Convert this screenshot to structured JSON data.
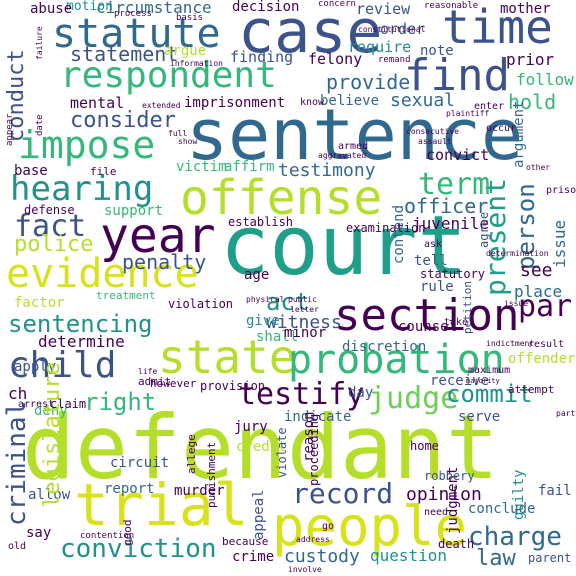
{
  "palette": {
    "dark_purple": "#440154",
    "indigo": "#3b528b",
    "blue": "#31688e",
    "teal": "#21918c",
    "green_teal": "#1f9e89",
    "green": "#35b779",
    "light_green": "#6ece58",
    "yellow_green": "#b5de2b",
    "yellow": "#d8e219"
  },
  "words": [
    {
      "text": "defendant",
      "color": "#b5de2b"
    },
    {
      "text": "court",
      "color": "#1f9e89"
    },
    {
      "text": "sentence",
      "color": "#31688e"
    },
    {
      "text": "case",
      "color": "#3b528b"
    },
    {
      "text": "trial",
      "color": "#d8e219"
    },
    {
      "text": "people",
      "color": "#d8e219"
    },
    {
      "text": "offense",
      "color": "#b5de2b"
    },
    {
      "text": "time",
      "color": "#3b528b"
    },
    {
      "text": "year",
      "color": "#440154"
    },
    {
      "text": "statute",
      "color": "#31688e"
    },
    {
      "text": "respondent",
      "color": "#35b779"
    },
    {
      "text": "evidence",
      "color": "#d8e219"
    },
    {
      "text": "state",
      "color": "#b5de2b"
    },
    {
      "text": "section",
      "color": "#440154"
    },
    {
      "text": "probation",
      "color": "#35b779"
    },
    {
      "text": "find",
      "color": "#3b528b"
    },
    {
      "text": "impose",
      "color": "#35b779"
    },
    {
      "text": "hearing",
      "color": "#21918c"
    },
    {
      "text": "child",
      "color": "#3b528b"
    },
    {
      "text": "sentencing",
      "color": "#21918c"
    },
    {
      "text": "testify",
      "color": "#440154"
    },
    {
      "text": "conviction",
      "color": "#21918c"
    },
    {
      "text": "record",
      "color": "#3b528b"
    },
    {
      "text": "judge",
      "color": "#6ece58"
    },
    {
      "text": "criminal",
      "color": "#3b528b"
    },
    {
      "text": "charge",
      "color": "#31688e"
    },
    {
      "text": "present",
      "color": "#1f9e89"
    },
    {
      "text": "person",
      "color": "#31688e"
    },
    {
      "text": "fact",
      "color": "#3b528b"
    },
    {
      "text": "police",
      "color": "#b5de2b"
    },
    {
      "text": "consider",
      "color": "#3b528b"
    },
    {
      "text": "term",
      "color": "#35b779"
    },
    {
      "text": "testimony",
      "color": "#31688e"
    },
    {
      "text": "provide",
      "color": "#31688e"
    },
    {
      "text": "conduct",
      "color": "#3b528b"
    },
    {
      "text": "statement",
      "color": "#3b528b"
    },
    {
      "text": "circumstance",
      "color": "#31688e"
    },
    {
      "text": "motion",
      "color": "#21918c"
    },
    {
      "text": "decision",
      "color": "#440154"
    },
    {
      "text": "review",
      "color": "#3b528b"
    },
    {
      "text": "mother",
      "color": "#440154"
    },
    {
      "text": "issue",
      "color": "#31688e"
    },
    {
      "text": "right",
      "color": "#35b779"
    },
    {
      "text": "commit",
      "color": "#21918c"
    },
    {
      "text": "custody",
      "color": "#31688e"
    },
    {
      "text": "question",
      "color": "#21918c"
    },
    {
      "text": "law",
      "color": "#31688e"
    },
    {
      "text": "opinion",
      "color": "#440154"
    },
    {
      "text": "par",
      "color": "#440154"
    },
    {
      "text": "act",
      "color": "#21918c"
    },
    {
      "text": "penalty",
      "color": "#3b528b"
    },
    {
      "text": "witness",
      "color": "#3b528b"
    },
    {
      "text": "determine",
      "color": "#440154"
    },
    {
      "text": "hold",
      "color": "#35b779"
    },
    {
      "text": "sexual",
      "color": "#31688e"
    },
    {
      "text": "officer",
      "color": "#31688e"
    },
    {
      "text": "juvenile",
      "color": "#440154"
    },
    {
      "text": "imprisonment",
      "color": "#440154"
    },
    {
      "text": "argue",
      "color": "#b5de2b"
    },
    {
      "text": "finding",
      "color": "#3b528b"
    },
    {
      "text": "felony",
      "color": "#440154"
    },
    {
      "text": "require",
      "color": "#21918c"
    },
    {
      "text": "order",
      "color": "#3b528b"
    },
    {
      "text": "prior",
      "color": "#440154"
    },
    {
      "text": "follow",
      "color": "#35b779"
    },
    {
      "text": "note",
      "color": "#3b528b"
    },
    {
      "text": "mental",
      "color": "#440154"
    },
    {
      "text": "believe",
      "color": "#31688e"
    },
    {
      "text": "victim",
      "color": "#35b779"
    },
    {
      "text": "affirm",
      "color": "#35b779"
    },
    {
      "text": "convict",
      "color": "#440154"
    },
    {
      "text": "argument",
      "color": "#31688e"
    },
    {
      "text": "base",
      "color": "#440154"
    },
    {
      "text": "support",
      "color": "#35b779"
    },
    {
      "text": "factor",
      "color": "#b5de2b"
    },
    {
      "text": "age",
      "color": "#440154"
    },
    {
      "text": "counsel",
      "color": "#440154"
    },
    {
      "text": "rule",
      "color": "#3b528b"
    },
    {
      "text": "tell",
      "color": "#3b528b"
    },
    {
      "text": "see",
      "color": "#440154"
    },
    {
      "text": "place",
      "color": "#31688e"
    },
    {
      "text": "give",
      "color": "#21918c"
    },
    {
      "text": "shall",
      "color": "#35b779"
    },
    {
      "text": "minor",
      "color": "#440154"
    },
    {
      "text": "discretion",
      "color": "#31688e"
    },
    {
      "text": "offender",
      "color": "#b5de2b"
    },
    {
      "text": "apply",
      "color": "#3b528b"
    },
    {
      "text": "jury",
      "color": "#440154"
    },
    {
      "text": "indicate",
      "color": "#31688e"
    },
    {
      "text": "serve",
      "color": "#3b528b"
    },
    {
      "text": "receive",
      "color": "#3b528b"
    },
    {
      "text": "deny",
      "color": "#35b779"
    },
    {
      "text": "ch",
      "color": "#440154"
    },
    {
      "text": "circuit",
      "color": "#3b528b"
    },
    {
      "text": "report",
      "color": "#31688e"
    },
    {
      "text": "murder",
      "color": "#440154"
    },
    {
      "text": "allow",
      "color": "#3b528b"
    },
    {
      "text": "say",
      "color": "#440154"
    },
    {
      "text": "crime",
      "color": "#440154"
    },
    {
      "text": "appeal",
      "color": "#3b528b"
    },
    {
      "text": "guilty",
      "color": "#21918c"
    },
    {
      "text": "conclude",
      "color": "#31688e"
    },
    {
      "text": "fail",
      "color": "#3b528b"
    },
    {
      "text": "judgment",
      "color": "#440154"
    },
    {
      "text": "legislature",
      "color": "#b5de2b"
    },
    {
      "text": "contend",
      "color": "#31688e"
    },
    {
      "text": "establish",
      "color": "#440154"
    },
    {
      "text": "examination",
      "color": "#440154"
    },
    {
      "text": "treatment",
      "color": "#35b779"
    },
    {
      "text": "violation",
      "color": "#440154"
    },
    {
      "text": "credit",
      "color": "#b5de2b"
    },
    {
      "text": "day",
      "color": "#3b528b"
    },
    {
      "text": "reason",
      "color": "#440154"
    },
    {
      "text": "home",
      "color": "#440154"
    },
    {
      "text": "abuse",
      "color": "#440154"
    },
    {
      "text": "defense",
      "color": "#440154"
    },
    {
      "text": "file",
      "color": "#440154"
    },
    {
      "text": "death",
      "color": "#440154"
    },
    {
      "text": "robbery",
      "color": "#3b528b"
    },
    {
      "text": "statutory",
      "color": "#440154"
    },
    {
      "text": "agree",
      "color": "#3b528b"
    },
    {
      "text": "arrest",
      "color": "#440154"
    },
    {
      "text": "attempt",
      "color": "#440154"
    },
    {
      "text": "provision",
      "color": "#440154"
    },
    {
      "text": "however",
      "color": "#440154"
    },
    {
      "text": "proceeding",
      "color": "#440154"
    },
    {
      "text": "because",
      "color": "#440154"
    },
    {
      "text": "maximum",
      "color": "#440154"
    },
    {
      "text": "violate",
      "color": "#3b528b"
    },
    {
      "text": "admit",
      "color": "#440154"
    },
    {
      "text": "claim",
      "color": "#440154"
    },
    {
      "text": "punishment",
      "color": "#440154"
    },
    {
      "text": "allege",
      "color": "#440154"
    },
    {
      "text": "petition",
      "color": "#3b528b"
    },
    {
      "text": "good",
      "color": "#440154"
    },
    {
      "text": "need",
      "color": "#440154"
    },
    {
      "text": "prison",
      "color": "#440154"
    },
    {
      "text": "parent",
      "color": "#3b528b"
    },
    {
      "text": "enter",
      "color": "#440154"
    },
    {
      "text": "occur",
      "color": "#440154"
    },
    {
      "text": "armed",
      "color": "#440154"
    },
    {
      "text": "know",
      "color": "#440154"
    },
    {
      "text": "ask",
      "color": "#440154"
    },
    {
      "text": "take",
      "color": "#440154"
    },
    {
      "text": "result",
      "color": "#440154"
    },
    {
      "text": "remand",
      "color": "#440154"
    },
    {
      "text": "reasonable",
      "color": "#440154"
    },
    {
      "text": "concern",
      "color": "#440154"
    },
    {
      "text": "basis",
      "color": "#440154"
    },
    {
      "text": "process",
      "color": "#440154"
    },
    {
      "text": "constitutional",
      "color": "#440154"
    },
    {
      "text": "plaintiff",
      "color": "#440154"
    },
    {
      "text": "consecutive",
      "color": "#440154"
    },
    {
      "text": "appear",
      "color": "#440154"
    },
    {
      "text": "show",
      "color": "#440154"
    },
    {
      "text": "date",
      "color": "#440154"
    },
    {
      "text": "failure",
      "color": "#440154"
    },
    {
      "text": "information",
      "color": "#440154"
    },
    {
      "text": "aggravated",
      "color": "#440154"
    },
    {
      "text": "assault",
      "color": "#440154"
    },
    {
      "text": "public",
      "color": "#440154"
    },
    {
      "text": "letter",
      "color": "#440154"
    },
    {
      "text": "physical",
      "color": "#440154"
    },
    {
      "text": "life",
      "color": "#440154"
    },
    {
      "text": "contention",
      "color": "#440154"
    },
    {
      "text": "old",
      "color": "#440154"
    },
    {
      "text": "involve",
      "color": "#440154"
    },
    {
      "text": "indictment",
      "color": "#440154"
    },
    {
      "text": "party",
      "color": "#440154"
    },
    {
      "text": "issue",
      "color": "#440154"
    },
    {
      "text": "majority",
      "color": "#440154"
    },
    {
      "text": "determination",
      "color": "#440154"
    },
    {
      "text": "other",
      "color": "#440154"
    },
    {
      "text": "address",
      "color": "#440154"
    },
    {
      "text": "go",
      "color": "#440154"
    },
    {
      "text": "extended",
      "color": "#440154"
    },
    {
      "text": "full",
      "color": "#440154"
    }
  ]
}
